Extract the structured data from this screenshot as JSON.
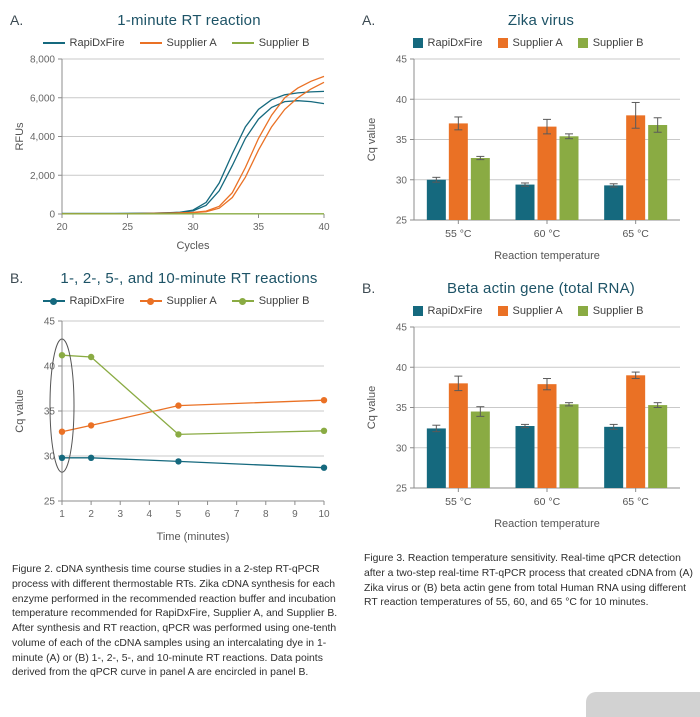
{
  "colors": {
    "rapidxfire": "#15697e",
    "supplier_a": "#ea7125",
    "supplier_b": "#8aab43",
    "error_bar": "#5a5a5a",
    "title": "#1d5366"
  },
  "captions": {
    "figure2": "Figure 2. cDNA synthesis time course studies in a 2-step RT-qPCR process with different thermostable RTs. Zika cDNA synthesis for each enzyme performed in the recommended reaction buffer and incubation temperature recommended for RapiDxFire, Supplier A, and Supplier B. After synthesis and RT reaction, qPCR was performed using one-tenth volume of each of the cDNA samples using an intercalating dye in 1-minute (A) or (B) 1-, 2-, 5-, and 10-minute RT reactions. Data points derived from the qPCR curve in panel A are encircled in panel B.",
    "figure3": "Figure 3. Reaction temperature sensitivity. Real-time qPCR detection after a two-step real-time RT-qPCR process that created cDNA from (A) Zika virus or (B) beta actin gene from total Human RNA using different RT reaction temperatures of 55, 60, and 65 °C for 10 minutes."
  },
  "chart_data": [
    {
      "id": "rt1",
      "type": "line",
      "panel_label": "A.",
      "title": "1-minute RT reaction",
      "xlabel": "Cycles",
      "ylabel": "RFUs",
      "xlim": [
        20,
        40
      ],
      "ylim": [
        0,
        8000
      ],
      "xticks": [
        20,
        25,
        30,
        35,
        40
      ],
      "yticks": [
        0,
        2000,
        4000,
        6000,
        8000
      ],
      "ytick_labels": [
        "0",
        "2,000",
        "4,000",
        "6,000",
        "8,000"
      ],
      "markers": false,
      "legend_style": "line",
      "legend": [
        {
          "label": "RapiDxFire",
          "color": "rapidxfire"
        },
        {
          "label": "Supplier A",
          "color": "supplier_a"
        },
        {
          "label": "Supplier B",
          "color": "supplier_b"
        }
      ],
      "series": [
        {
          "name": "RapiDxFire rep 1",
          "color": "rapidxfire",
          "x": [
            20,
            21,
            22,
            23,
            24,
            25,
            26,
            27,
            28,
            29,
            30,
            31,
            32,
            33,
            34,
            35,
            36,
            37,
            38,
            39,
            40
          ],
          "y": [
            25,
            25,
            25,
            25,
            25,
            30,
            35,
            45,
            60,
            90,
            200,
            600,
            1600,
            3100,
            4500,
            5400,
            5900,
            6150,
            6250,
            6300,
            6330
          ]
        },
        {
          "name": "RapiDxFire rep 2",
          "color": "rapidxfire",
          "x": [
            20,
            21,
            22,
            23,
            24,
            25,
            26,
            27,
            28,
            29,
            30,
            31,
            32,
            33,
            34,
            35,
            36,
            37,
            38,
            39,
            40
          ],
          "y": [
            25,
            25,
            25,
            25,
            25,
            28,
            32,
            40,
            55,
            80,
            160,
            450,
            1200,
            2500,
            3900,
            4900,
            5500,
            5800,
            5850,
            5800,
            5700
          ]
        },
        {
          "name": "Supplier A rep 1",
          "color": "supplier_a",
          "x": [
            20,
            21,
            22,
            23,
            24,
            25,
            26,
            27,
            28,
            29,
            30,
            31,
            32,
            33,
            34,
            35,
            36,
            37,
            38,
            39,
            40
          ],
          "y": [
            20,
            20,
            20,
            20,
            20,
            20,
            25,
            30,
            40,
            55,
            80,
            150,
            400,
            1100,
            2400,
            3900,
            5100,
            6000,
            6500,
            6850,
            7100
          ]
        },
        {
          "name": "Supplier A rep 2",
          "color": "supplier_a",
          "x": [
            20,
            21,
            22,
            23,
            24,
            25,
            26,
            27,
            28,
            29,
            30,
            31,
            32,
            33,
            34,
            35,
            36,
            37,
            38,
            39,
            40
          ],
          "y": [
            20,
            20,
            20,
            20,
            20,
            20,
            22,
            28,
            35,
            50,
            70,
            120,
            300,
            850,
            1900,
            3300,
            4500,
            5400,
            6000,
            6450,
            6800
          ]
        },
        {
          "name": "Supplier B",
          "color": "supplier_b",
          "x": [
            20,
            21,
            22,
            23,
            24,
            25,
            26,
            27,
            28,
            29,
            30,
            31,
            32,
            33,
            34,
            35,
            36,
            37,
            38,
            39,
            40
          ],
          "y": [
            12,
            12,
            12,
            12,
            12,
            12,
            12,
            12,
            12,
            12,
            12,
            12,
            12,
            12,
            12,
            12,
            12,
            12,
            12,
            12,
            12
          ]
        }
      ]
    },
    {
      "id": "rt2",
      "type": "line",
      "panel_label": "B.",
      "title": "1-, 2-, 5-, and 10-minute RT reactions",
      "xlabel": "Time (minutes)",
      "ylabel": "Cq value",
      "xlim": [
        1,
        10
      ],
      "ylim": [
        25,
        45
      ],
      "xticks": [
        1,
        2,
        3,
        4,
        5,
        6,
        7,
        8,
        9,
        10
      ],
      "yticks": [
        25,
        30,
        35,
        40,
        45
      ],
      "markers": true,
      "legend_style": "dot-line",
      "legend": [
        {
          "label": "RapiDxFire",
          "color": "rapidxfire"
        },
        {
          "label": "Supplier A",
          "color": "supplier_a"
        },
        {
          "label": "Supplier B",
          "color": "supplier_b"
        }
      ],
      "annotation": {
        "type": "ellipse",
        "x": 1,
        "y_range": [
          28.2,
          43.0
        ],
        "rx": 12
      },
      "series": [
        {
          "name": "RapiDxFire",
          "color": "rapidxfire",
          "x": [
            1,
            2,
            5,
            10
          ],
          "y": [
            29.8,
            29.8,
            29.4,
            28.7
          ]
        },
        {
          "name": "Supplier A",
          "color": "supplier_a",
          "x": [
            1,
            2,
            5,
            10
          ],
          "y": [
            32.7,
            33.4,
            35.6,
            36.2
          ]
        },
        {
          "name": "Supplier B",
          "color": "supplier_b",
          "x": [
            1,
            2,
            5,
            10
          ],
          "y": [
            41.2,
            41.0,
            32.4,
            32.8
          ]
        }
      ]
    },
    {
      "id": "rt3",
      "type": "bar",
      "panel_label": "A.",
      "title": "Zika virus",
      "xlabel": "Reaction temperature",
      "ylabel": "Cq value",
      "categories": [
        "55 °C",
        "60 °C",
        "65 °C"
      ],
      "ylim": [
        25,
        45
      ],
      "yticks": [
        25,
        30,
        35,
        40,
        45
      ],
      "legend_style": "square",
      "legend": [
        {
          "label": "RapiDxFire",
          "color": "rapidxfire"
        },
        {
          "label": "Supplier A",
          "color": "supplier_a"
        },
        {
          "label": "Supplier B",
          "color": "supplier_b"
        }
      ],
      "series": [
        {
          "name": "RapiDxFire",
          "color": "rapidxfire",
          "values": [
            30.0,
            29.4,
            29.3
          ],
          "errors": [
            0.3,
            0.2,
            0.2
          ]
        },
        {
          "name": "Supplier A",
          "color": "supplier_a",
          "values": [
            37.0,
            36.6,
            38.0
          ],
          "errors": [
            0.8,
            0.9,
            1.6
          ]
        },
        {
          "name": "Supplier B",
          "color": "supplier_b",
          "values": [
            32.7,
            35.4,
            36.8
          ],
          "errors": [
            0.2,
            0.3,
            0.9
          ]
        }
      ]
    },
    {
      "id": "rt4",
      "type": "bar",
      "panel_label": "B.",
      "title": "Beta actin gene (total RNA)",
      "xlabel": "Reaction temperature",
      "ylabel": "Cq value",
      "categories": [
        "55 °C",
        "60 °C",
        "65 °C"
      ],
      "ylim": [
        25,
        45
      ],
      "yticks": [
        25,
        30,
        35,
        40,
        45
      ],
      "legend_style": "square",
      "legend": [
        {
          "label": "RapiDxFire",
          "color": "rapidxfire"
        },
        {
          "label": "Supplier A",
          "color": "supplier_a"
        },
        {
          "label": "Supplier B",
          "color": "supplier_b"
        }
      ],
      "series": [
        {
          "name": "RapiDxFire",
          "color": "rapidxfire",
          "values": [
            32.4,
            32.7,
            32.6
          ],
          "errors": [
            0.4,
            0.2,
            0.3
          ]
        },
        {
          "name": "Supplier A",
          "color": "supplier_a",
          "values": [
            38.0,
            37.9,
            39.0
          ],
          "errors": [
            0.9,
            0.7,
            0.4
          ]
        },
        {
          "name": "Supplier B",
          "color": "supplier_b",
          "values": [
            34.5,
            35.4,
            35.3
          ],
          "errors": [
            0.6,
            0.2,
            0.3
          ]
        }
      ]
    }
  ]
}
